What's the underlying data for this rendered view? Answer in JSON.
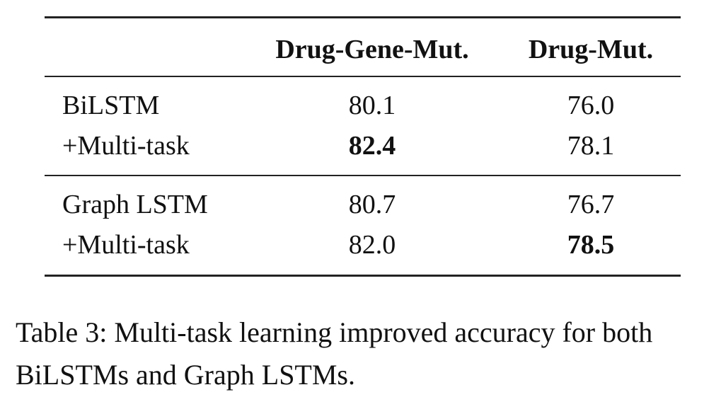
{
  "table": {
    "columns": [
      "Drug-Gene-Mut.",
      "Drug-Mut."
    ],
    "groups": [
      [
        {
          "model": "BiLSTM",
          "values": [
            "80.1",
            "76.0"
          ],
          "bold": [
            false,
            false
          ]
        },
        {
          "model": "+Multi-task",
          "values": [
            "82.4",
            "78.1"
          ],
          "bold": [
            true,
            false
          ]
        }
      ],
      [
        {
          "model": "Graph LSTM",
          "values": [
            "80.7",
            "76.7"
          ],
          "bold": [
            false,
            false
          ]
        },
        {
          "model": "+Multi-task",
          "values": [
            "82.0",
            "78.5"
          ],
          "bold": [
            false,
            true
          ]
        }
      ]
    ]
  },
  "caption": "Table 3: Multi-task learning improved accuracy for both BiLSTMs and Graph LSTMs."
}
